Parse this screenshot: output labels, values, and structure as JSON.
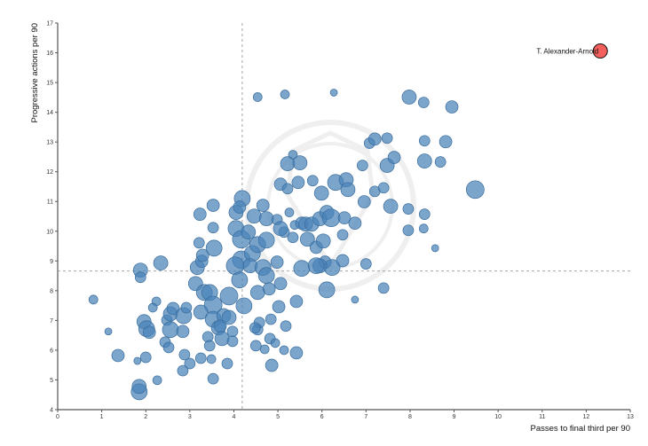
{
  "chart_data": {
    "type": "scatter",
    "title": "",
    "xlabel": "Passes to final third per 90",
    "ylabel": "Progressive actions per 90",
    "xlim": [
      0,
      13
    ],
    "ylim": [
      4,
      17
    ],
    "xticks": [
      "0",
      "1",
      "2",
      "3",
      "4",
      "5",
      "6",
      "7",
      "8",
      "9",
      "10",
      "11",
      "12",
      "13"
    ],
    "yticks": [
      "4",
      "5",
      "6",
      "7",
      "8",
      "9",
      "10",
      "11",
      "12",
      "13",
      "14",
      "15",
      "16",
      "17"
    ],
    "reference_lines": {
      "x_mean": 4.19,
      "y_mean": 8.66
    },
    "grid": false,
    "colors": {
      "points": "#4a82b8",
      "points_stroke": "#3a6d9c",
      "highlight": "#f25f5c",
      "reflines": "#999999"
    },
    "highlight": {
      "label": "T. Alexander-Arnold",
      "x": 12.32,
      "y": 16.06
    },
    "point_fields": [
      "x",
      "y",
      "size"
    ],
    "points": [
      [
        0.81,
        7.7,
        5
      ],
      [
        1.15,
        6.63,
        4
      ],
      [
        1.37,
        5.82,
        7
      ],
      [
        1.85,
        4.6,
        9
      ],
      [
        1.85,
        4.78,
        8
      ],
      [
        1.81,
        5.64,
        4
      ],
      [
        2.0,
        5.76,
        6
      ],
      [
        2.26,
        4.99,
        5
      ],
      [
        1.88,
        8.69,
        8
      ],
      [
        1.88,
        8.45,
        6
      ],
      [
        2.34,
        8.93,
        8
      ],
      [
        1.96,
        6.96,
        8
      ],
      [
        2.02,
        6.72,
        9
      ],
      [
        2.08,
        6.6,
        7
      ],
      [
        2.24,
        7.64,
        5
      ],
      [
        2.16,
        7.43,
        5
      ],
      [
        2.48,
        7.01,
        6
      ],
      [
        2.56,
        7.22,
        8
      ],
      [
        2.62,
        7.4,
        7
      ],
      [
        2.56,
        6.69,
        9
      ],
      [
        2.44,
        6.27,
        6
      ],
      [
        2.52,
        6.09,
        6
      ],
      [
        2.84,
        6.63,
        7
      ],
      [
        2.86,
        7.16,
        9
      ],
      [
        2.92,
        7.43,
        6
      ],
      [
        3.13,
        8.24,
        8
      ],
      [
        3.17,
        8.78,
        8
      ],
      [
        3.27,
        8.99,
        7
      ],
      [
        3.29,
        9.19,
        7
      ],
      [
        3.21,
        9.61,
        6
      ],
      [
        3.23,
        10.57,
        7
      ],
      [
        3.53,
        10.87,
        7
      ],
      [
        3.53,
        10.12,
        6
      ],
      [
        3.55,
        9.43,
        9
      ],
      [
        3.33,
        7.94,
        9
      ],
      [
        3.45,
        7.94,
        9
      ],
      [
        3.53,
        7.52,
        10
      ],
      [
        3.25,
        7.28,
        8
      ],
      [
        3.53,
        7.04,
        9
      ],
      [
        3.65,
        6.75,
        8
      ],
      [
        3.77,
        7.16,
        8
      ],
      [
        3.89,
        7.82,
        10
      ],
      [
        3.0,
        5.55,
        6
      ],
      [
        2.84,
        5.31,
        6
      ],
      [
        2.88,
        5.85,
        6
      ],
      [
        3.25,
        5.73,
        6
      ],
      [
        3.41,
        6.45,
        6
      ],
      [
        3.45,
        6.15,
        6
      ],
      [
        3.53,
        5.04,
        6
      ],
      [
        3.69,
        6.81,
        7
      ],
      [
        3.73,
        6.39,
        8
      ],
      [
        3.89,
        7.1,
        8
      ],
      [
        3.97,
        6.63,
        6
      ],
      [
        4.05,
        10.63,
        8
      ],
      [
        4.19,
        11.1,
        9
      ],
      [
        4.13,
        10.81,
        7
      ],
      [
        4.05,
        10.09,
        9
      ],
      [
        4.17,
        9.73,
        10
      ],
      [
        4.33,
        9.97,
        8
      ],
      [
        4.17,
        9.04,
        10
      ],
      [
        4.42,
        9.25,
        9
      ],
      [
        4.54,
        9.55,
        9
      ],
      [
        4.74,
        9.7,
        9
      ],
      [
        4.46,
        10.51,
        8
      ],
      [
        4.66,
        10.87,
        7
      ],
      [
        4.74,
        10.42,
        8
      ],
      [
        4.03,
        8.84,
        10
      ],
      [
        4.37,
        8.84,
        8
      ],
      [
        4.66,
        8.78,
        9
      ],
      [
        4.74,
        8.51,
        9
      ],
      [
        4.98,
        8.96,
        7
      ],
      [
        4.8,
        8.06,
        7
      ],
      [
        5.06,
        8.24,
        7
      ],
      [
        4.13,
        8.36,
        9
      ],
      [
        4.54,
        7.94,
        8
      ],
      [
        4.23,
        7.49,
        9
      ],
      [
        4.54,
        14.51,
        5
      ],
      [
        5.16,
        14.6,
        5
      ],
      [
        6.27,
        14.66,
        4
      ],
      [
        5.34,
        12.57,
        5
      ],
      [
        5.22,
        12.27,
        8
      ],
      [
        5.5,
        12.3,
        8
      ],
      [
        5.06,
        11.58,
        7
      ],
      [
        5.22,
        11.43,
        6
      ],
      [
        5.46,
        11.64,
        7
      ],
      [
        5.79,
        11.7,
        6
      ],
      [
        4.98,
        10.39,
        6
      ],
      [
        5.14,
        9.97,
        6
      ],
      [
        5.26,
        10.63,
        5
      ],
      [
        5.38,
        10.21,
        5
      ],
      [
        5.06,
        10.09,
        8
      ],
      [
        5.34,
        9.79,
        6
      ],
      [
        5.54,
        10.27,
        7
      ],
      [
        5.63,
        10.24,
        8
      ],
      [
        5.77,
        10.24,
        8
      ],
      [
        5.95,
        10.42,
        8
      ],
      [
        6.11,
        10.63,
        8
      ],
      [
        6.21,
        10.45,
        10
      ],
      [
        5.99,
        11.28,
        8
      ],
      [
        6.31,
        11.64,
        9
      ],
      [
        6.55,
        11.73,
        8
      ],
      [
        6.59,
        11.4,
        8
      ],
      [
        6.92,
        12.21,
        6
      ],
      [
        7.2,
        11.34,
        6
      ],
      [
        7.4,
        11.46,
        6
      ],
      [
        7.56,
        10.84,
        8
      ],
      [
        7.96,
        10.75,
        6
      ],
      [
        5.67,
        9.73,
        8
      ],
      [
        5.87,
        9.46,
        7
      ],
      [
        6.03,
        9.67,
        8
      ],
      [
        6.07,
        8.96,
        7
      ],
      [
        6.23,
        8.78,
        9
      ],
      [
        6.47,
        9.88,
        6
      ],
      [
        6.51,
        10.45,
        7
      ],
      [
        6.75,
        10.27,
        7
      ],
      [
        6.96,
        10.99,
        7
      ],
      [
        5.95,
        8.84,
        8
      ],
      [
        5.54,
        8.75,
        9
      ],
      [
        5.87,
        8.84,
        9
      ],
      [
        6.47,
        9.01,
        7
      ],
      [
        7.0,
        8.9,
        6
      ],
      [
        7.08,
        12.96,
        6
      ],
      [
        7.2,
        13.1,
        7
      ],
      [
        7.48,
        13.13,
        6
      ],
      [
        7.48,
        12.21,
        8
      ],
      [
        7.64,
        12.48,
        7
      ],
      [
        8.33,
        10.57,
        6
      ],
      [
        8.31,
        10.09,
        5
      ],
      [
        7.96,
        10.03,
        6
      ],
      [
        7.98,
        14.51,
        8
      ],
      [
        8.31,
        14.33,
        6
      ],
      [
        8.95,
        14.18,
        7
      ],
      [
        8.33,
        13.04,
        6
      ],
      [
        8.33,
        12.36,
        8
      ],
      [
        8.69,
        12.33,
        6
      ],
      [
        8.81,
        13.01,
        7
      ],
      [
        9.48,
        11.4,
        10
      ],
      [
        8.57,
        9.43,
        4
      ],
      [
        7.4,
        8.09,
        6
      ],
      [
        6.75,
        7.7,
        4
      ],
      [
        6.11,
        8.03,
        9
      ],
      [
        5.02,
        7.46,
        7
      ],
      [
        5.42,
        7.64,
        7
      ],
      [
        4.84,
        7.04,
        6
      ],
      [
        5.18,
        6.81,
        6
      ],
      [
        4.82,
        6.39,
        6
      ],
      [
        4.54,
        6.69,
        6
      ],
      [
        4.5,
        6.15,
        6
      ],
      [
        4.94,
        6.24,
        5
      ],
      [
        5.14,
        6.0,
        5
      ],
      [
        5.42,
        5.91,
        7
      ],
      [
        4.86,
        5.49,
        7
      ],
      [
        4.7,
        6.03,
        5
      ],
      [
        4.58,
        6.93,
        6
      ],
      [
        4.48,
        6.75,
        6
      ],
      [
        3.85,
        5.55,
        6
      ],
      [
        3.97,
        6.3,
        6
      ],
      [
        3.49,
        5.7,
        5
      ]
    ]
  }
}
